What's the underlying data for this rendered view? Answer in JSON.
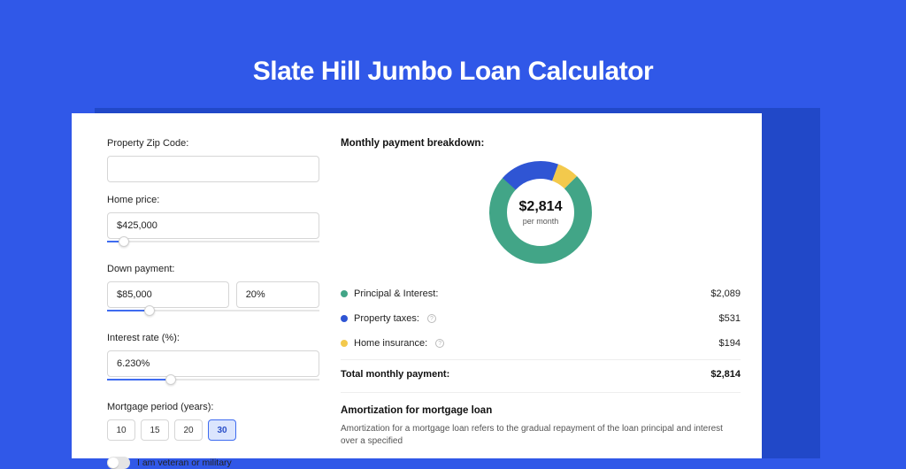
{
  "page": {
    "title": "Slate Hill Jumbo Loan Calculator",
    "background_color": "#3058e8",
    "shadow_color": "#2148c8",
    "panel_color": "#ffffff"
  },
  "form": {
    "zip_label": "Property Zip Code:",
    "zip_value": "",
    "home_price_label": "Home price:",
    "home_price_value": "$425,000",
    "home_price_slider_pct": 8,
    "down_payment_label": "Down payment:",
    "down_payment_value": "$85,000",
    "down_payment_pct_value": "20%",
    "down_payment_slider_pct": 20,
    "interest_label": "Interest rate (%):",
    "interest_value": "6.230%",
    "interest_slider_pct": 30,
    "period_label": "Mortgage period (years):",
    "periods": [
      "10",
      "15",
      "20",
      "30"
    ],
    "period_selected_index": 3,
    "veteran_label": "I am veteran or military",
    "veteran_on": false,
    "slider": {
      "track_color": "#e6e6e6",
      "fill_color": "#3f6cf0",
      "thumb_color": "#ffffff"
    },
    "period_selected_bg": "#dbe5fd",
    "period_selected_border": "#3f6cf0"
  },
  "breakdown": {
    "title": "Monthly payment breakdown:",
    "donut": {
      "amount": "$2,814",
      "sub_label": "per month",
      "segments": [
        {
          "label": "Principal & Interest",
          "color": "#42a587",
          "value": 2089,
          "pct": 74.2
        },
        {
          "label": "Property taxes",
          "color": "#2f55d4",
          "value": 531,
          "pct": 18.9
        },
        {
          "label": "Home insurance",
          "color": "#f3c94c",
          "value": 194,
          "pct": 6.9
        }
      ],
      "thickness": 20,
      "radius": 58,
      "start_angle_deg": -45
    },
    "rows": [
      {
        "label": "Principal & Interest:",
        "color": "#42a587",
        "amount": "$2,089",
        "info": false
      },
      {
        "label": "Property taxes:",
        "color": "#2f55d4",
        "amount": "$531",
        "info": true
      },
      {
        "label": "Home insurance:",
        "color": "#f3c94c",
        "amount": "$194",
        "info": true
      }
    ],
    "total_label": "Total monthly payment:",
    "total_amount": "$2,814"
  },
  "amortization": {
    "title": "Amortization for mortgage loan",
    "body": "Amortization for a mortgage loan refers to the gradual repayment of the loan principal and interest over a specified"
  }
}
